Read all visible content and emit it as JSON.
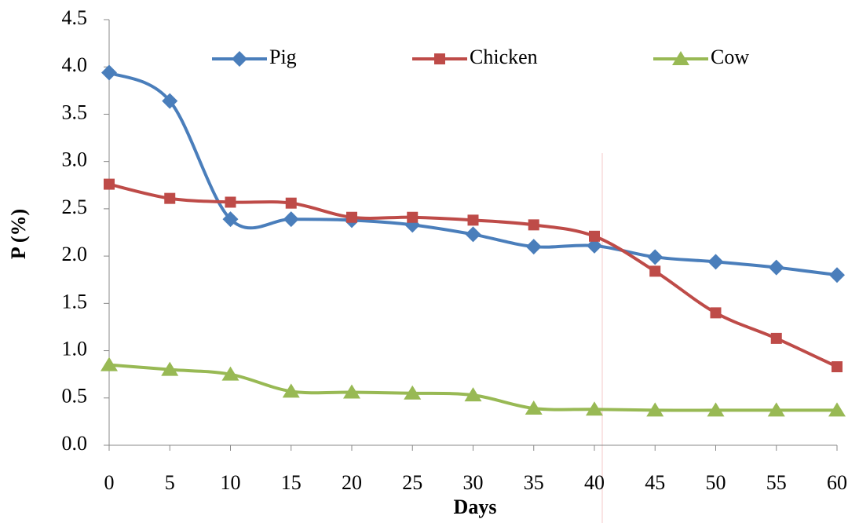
{
  "chart_data": {
    "type": "line",
    "x_label": "Days",
    "y_label": "P (%)",
    "x": [
      0,
      5,
      10,
      15,
      20,
      25,
      30,
      35,
      40,
      45,
      50,
      55,
      60
    ],
    "xlim": [
      0,
      60
    ],
    "xticks": [
      0,
      5,
      10,
      15,
      20,
      25,
      30,
      35,
      40,
      45,
      50,
      55,
      60
    ],
    "ylim": [
      0,
      4.5
    ],
    "yticks": [
      {
        "value": 0,
        "label": "0.0"
      },
      0.5,
      {
        "value": 1,
        "label": "1.0"
      },
      1.5,
      {
        "value": 2,
        "label": "2.0"
      },
      2.5,
      {
        "value": 3,
        "label": "3.0"
      },
      3.5,
      {
        "value": 4,
        "label": "4.0"
      },
      4.5
    ],
    "legend": "top",
    "series": [
      {
        "name": "Pig",
        "color": "#4a7ebb",
        "marker": "diamond",
        "values": [
          3.94,
          3.64,
          2.39,
          2.39,
          2.38,
          2.33,
          2.23,
          2.1,
          2.11,
          1.99,
          1.94,
          1.88,
          1.8
        ]
      },
      {
        "name": "Chicken",
        "color": "#be4b48",
        "marker": "square",
        "values": [
          2.76,
          2.61,
          2.57,
          2.56,
          2.41,
          2.41,
          2.38,
          2.33,
          2.21,
          1.84,
          1.4,
          1.13,
          0.83
        ]
      },
      {
        "name": "Cow",
        "color": "#98b954",
        "marker": "triangle",
        "values": [
          0.85,
          0.8,
          0.75,
          0.57,
          0.56,
          0.55,
          0.53,
          0.39,
          0.38,
          0.37,
          0.37,
          0.37,
          0.37
        ]
      }
    ]
  }
}
